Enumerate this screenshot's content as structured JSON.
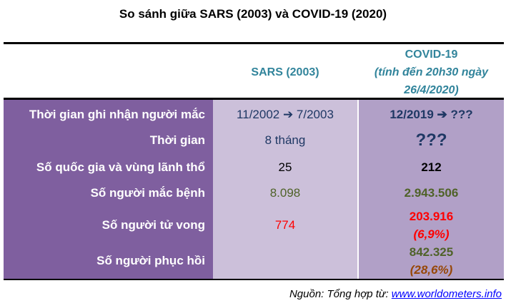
{
  "title": "So sánh giữa SARS (2003) và COVID-19 (2020)",
  "header": {
    "sars": "SARS (2003)",
    "covid": [
      "COVID-19",
      "(tính đến 20h30 ngày",
      "26/4/2020)"
    ]
  },
  "rows": [
    {
      "label": "Thời gian ghi nhận người mắc",
      "sars": "11/2002 ➔ 7/2003",
      "covid": [
        "12/2019 ➔ ???"
      ]
    },
    {
      "label": "Thời gian",
      "sars": "8 tháng",
      "covid": [
        "???"
      ]
    },
    {
      "label": "Số quốc gia và vùng lãnh thổ",
      "sars": "25",
      "covid": [
        "212"
      ]
    },
    {
      "label": "Số người mắc bệnh",
      "sars": "8.098",
      "covid": [
        "2.943.506"
      ]
    },
    {
      "label": "Số người tử vong",
      "sars": "774",
      "covid": [
        "203.916",
        "(6,9%)"
      ]
    },
    {
      "label": "Số người phục hồi",
      "sars": "",
      "covid": [
        "842.325",
        "(28,6%)"
      ]
    }
  ],
  "source": {
    "prefix": "Nguồn: Tổng hợp từ: ",
    "link": "www.worldometers.info"
  }
}
